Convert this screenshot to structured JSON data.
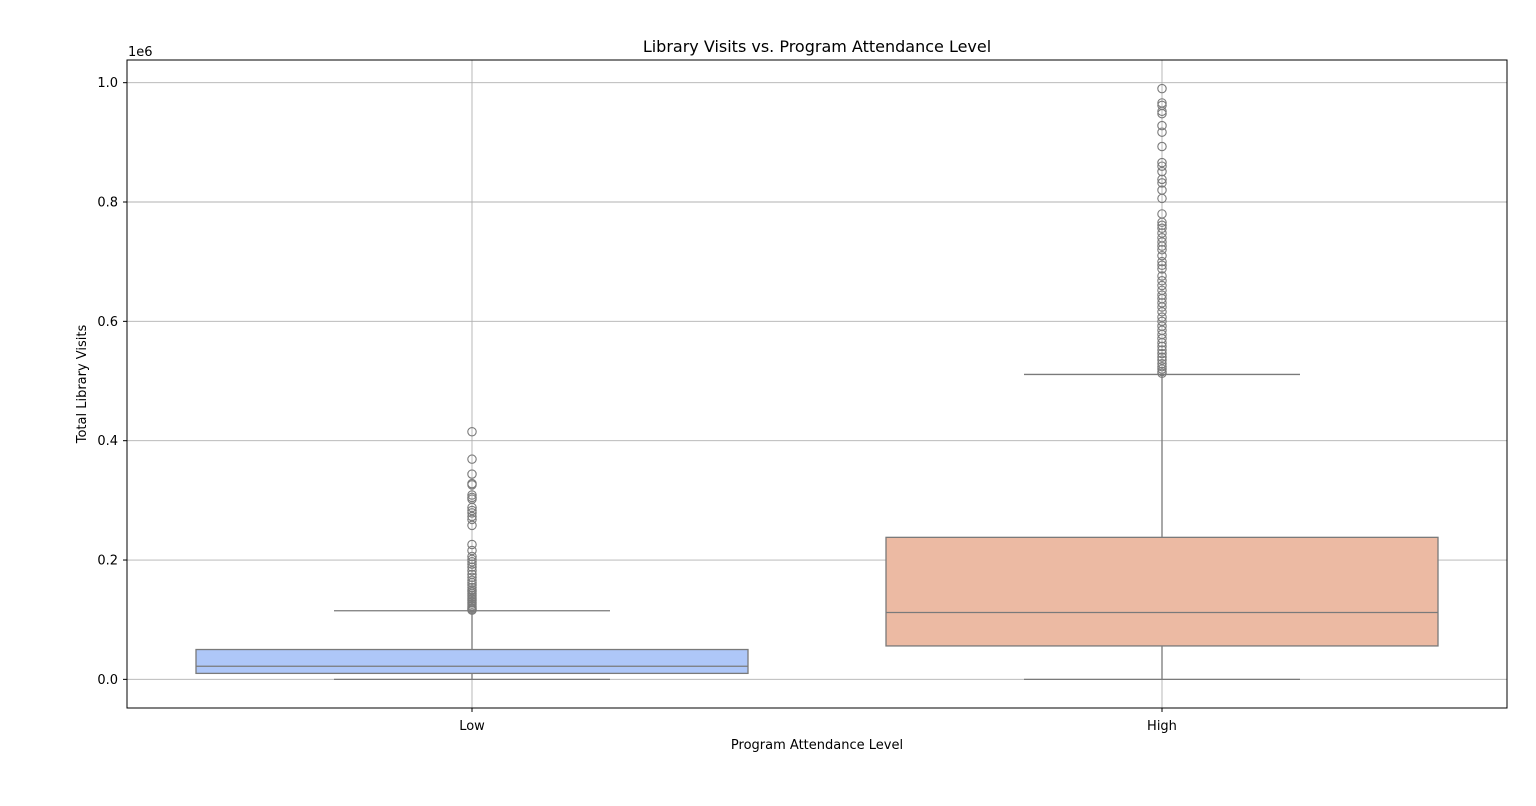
{
  "chart_data": {
    "type": "box",
    "title": "Library Visits vs. Program Attendance Level",
    "xlabel": "Program Attendance Level",
    "ylabel": "Total Library Visits",
    "y_offset_label": "1e6",
    "ylim": [
      -0.048,
      1.038
    ],
    "yticks": [
      0.0,
      0.2,
      0.4,
      0.6,
      0.8,
      1.0
    ],
    "ytick_labels": [
      "0.0",
      "0.2",
      "0.4",
      "0.6",
      "0.8",
      "1.0"
    ],
    "grid": true,
    "categories": [
      "Low",
      "High"
    ],
    "boxes": [
      {
        "category": "Low",
        "color": "#aec7f8",
        "whisker_low": 0.0,
        "q1": 0.01,
        "median": 0.022,
        "q3": 0.05,
        "whisker_high": 0.115,
        "outliers": [
          0.415,
          0.369,
          0.344,
          0.328,
          0.326,
          0.309,
          0.305,
          0.302,
          0.288,
          0.283,
          0.279,
          0.273,
          0.268,
          0.258,
          0.226,
          0.216,
          0.206,
          0.201,
          0.197,
          0.193,
          0.188,
          0.182,
          0.176,
          0.171,
          0.166,
          0.162,
          0.158,
          0.154,
          0.15,
          0.147,
          0.144,
          0.141,
          0.138,
          0.135,
          0.132,
          0.129,
          0.126,
          0.123,
          0.12,
          0.118,
          0.116
        ]
      },
      {
        "category": "High",
        "color": "#ecbaa3",
        "whisker_low": 0.0,
        "q1": 0.056,
        "median": 0.112,
        "q3": 0.238,
        "whisker_high": 0.511,
        "outliers": [
          0.99,
          0.966,
          0.962,
          0.952,
          0.948,
          0.928,
          0.917,
          0.893,
          0.866,
          0.86,
          0.851,
          0.838,
          0.832,
          0.82,
          0.806,
          0.78,
          0.766,
          0.761,
          0.756,
          0.748,
          0.74,
          0.733,
          0.726,
          0.72,
          0.71,
          0.7,
          0.694,
          0.688,
          0.676,
          0.668,
          0.66,
          0.652,
          0.644,
          0.638,
          0.631,
          0.624,
          0.616,
          0.607,
          0.6,
          0.592,
          0.585,
          0.578,
          0.571,
          0.564,
          0.558,
          0.552,
          0.546,
          0.54,
          0.535,
          0.529,
          0.524,
          0.52,
          0.516,
          0.513
        ]
      }
    ]
  }
}
